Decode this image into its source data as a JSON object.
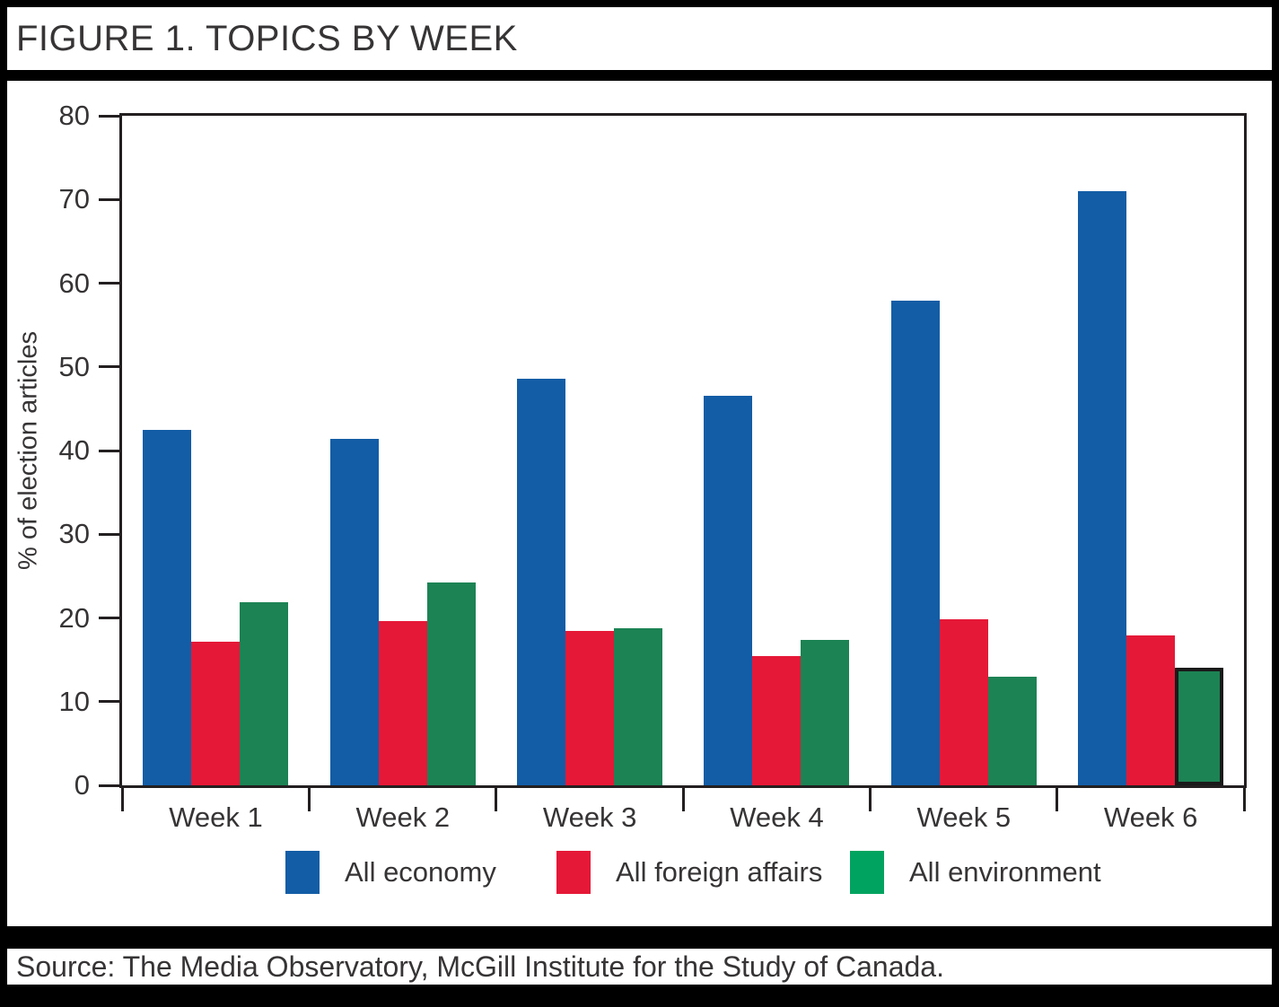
{
  "header": {
    "title": "FIGURE 1. TOPICS BY WEEK"
  },
  "footer": {
    "source": "Source: The Media Observatory, McGill Institute for the Study of Canada."
  },
  "colors": {
    "ink": "#231F20",
    "text": "#373435",
    "frame": "#000000",
    "economy_blue": "#135DA7",
    "foreign_red": "#E51937",
    "environment_green_bar": "#1B8354",
    "environment_green_legend": "#00A35F"
  },
  "chart_data": {
    "type": "bar",
    "title": "FIGURE 1. TOPICS BY WEEK",
    "categories": [
      "Week 1",
      "Week 2",
      "Week 3",
      "Week 4",
      "Week 5",
      "Week 6"
    ],
    "series": [
      {
        "name": "All economy",
        "color": "#135DA7",
        "values": [
          42.5,
          41.4,
          48.6,
          46.5,
          57.9,
          71.0
        ]
      },
      {
        "name": "All foreign affairs",
        "color": "#E51937",
        "values": [
          17.2,
          19.6,
          18.4,
          15.4,
          19.8,
          17.9
        ]
      },
      {
        "name": "All environment",
        "color": "#1B8354",
        "legend_color": "#00A35F",
        "values": [
          21.9,
          24.2,
          18.8,
          17.4,
          13.0,
          14.1
        ]
      }
    ],
    "xlabel": "",
    "ylabel": "% of election articles",
    "ylim": [
      0,
      80
    ],
    "yticks": [
      0,
      10,
      20,
      30,
      40,
      50,
      60,
      70,
      80
    ],
    "grid": false,
    "legend_position": "bottom",
    "highlight": {
      "category_index": 5,
      "series_index": 2,
      "style": "black-outline"
    }
  }
}
